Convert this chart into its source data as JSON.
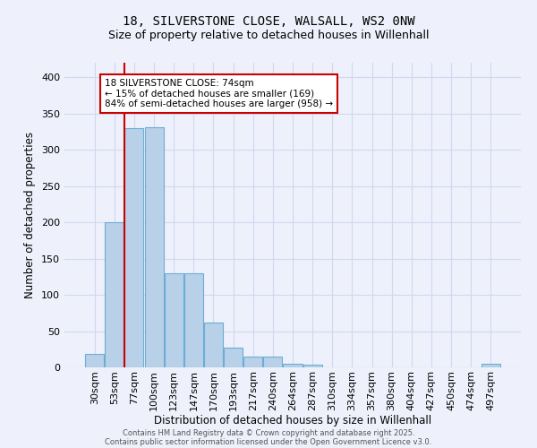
{
  "title": "18, SILVERSTONE CLOSE, WALSALL, WS2 0NW",
  "subtitle": "Size of property relative to detached houses in Willenhall",
  "xlabel": "Distribution of detached houses by size in Willenhall",
  "ylabel": "Number of detached properties",
  "categories": [
    "30sqm",
    "53sqm",
    "77sqm",
    "100sqm",
    "123sqm",
    "147sqm",
    "170sqm",
    "193sqm",
    "217sqm",
    "240sqm",
    "264sqm",
    "287sqm",
    "310sqm",
    "334sqm",
    "357sqm",
    "380sqm",
    "404sqm",
    "427sqm",
    "450sqm",
    "474sqm",
    "497sqm"
  ],
  "values": [
    18,
    200,
    330,
    331,
    130,
    130,
    62,
    27,
    15,
    15,
    5,
    4,
    0,
    0,
    0,
    0,
    0,
    0,
    0,
    0,
    5
  ],
  "bar_color": "#b8d0e8",
  "bar_edge_color": "#6aaed6",
  "vline_x": 1.5,
  "vline_color": "#cc0000",
  "annotation_text": "18 SILVERSTONE CLOSE: 74sqm\n← 15% of detached houses are smaller (169)\n84% of semi-detached houses are larger (958) →",
  "annotation_box_facecolor": "#ffffff",
  "annotation_box_edgecolor": "#cc0000",
  "ylim": [
    0,
    420
  ],
  "yticks": [
    0,
    50,
    100,
    150,
    200,
    250,
    300,
    350,
    400
  ],
  "bg_color": "#eef1fb",
  "grid_color": "#d0d8f0",
  "title_fontsize": 10,
  "subtitle_fontsize": 9,
  "footer_line1": "Contains HM Land Registry data © Crown copyright and database right 2025.",
  "footer_line2": "Contains public sector information licensed under the Open Government Licence v3.0."
}
